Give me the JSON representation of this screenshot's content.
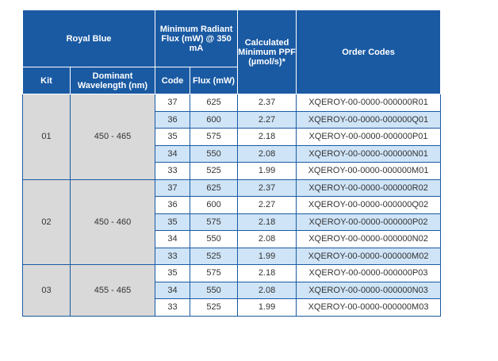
{
  "header": {
    "group_title": "Royal Blue",
    "min_flux_title": "Minimum Radiant Flux (mW) @ 350 mA",
    "ppf_title": "Calculated Minimum PPF (µmol/s)*",
    "order_codes_title": "Order Codes",
    "kit": "Kit",
    "dominant_wavelength": "Dominant Wavelength (nm)",
    "code": "Code",
    "flux": "Flux (mW)"
  },
  "kits": [
    {
      "kit": "01",
      "wavelength": "450 - 465",
      "rows": [
        {
          "code": "37",
          "flux": "625",
          "ppf": "2.37",
          "order": "XQEROY-00-0000-000000R01"
        },
        {
          "code": "36",
          "flux": "600",
          "ppf": "2.27",
          "order": "XQEROY-00-0000-000000Q01"
        },
        {
          "code": "35",
          "flux": "575",
          "ppf": "2.18",
          "order": "XQEROY-00-0000-000000P01"
        },
        {
          "code": "34",
          "flux": "550",
          "ppf": "2.08",
          "order": "XQEROY-00-0000-000000N01"
        },
        {
          "code": "33",
          "flux": "525",
          "ppf": "1.99",
          "order": "XQEROY-00-0000-000000M01"
        }
      ]
    },
    {
      "kit": "02",
      "wavelength": "450 - 460",
      "rows": [
        {
          "code": "37",
          "flux": "625",
          "ppf": "2.37",
          "order": "XQEROY-00-0000-000000R02"
        },
        {
          "code": "36",
          "flux": "600",
          "ppf": "2.27",
          "order": "XQEROY-00-0000-000000Q02"
        },
        {
          "code": "35",
          "flux": "575",
          "ppf": "2.18",
          "order": "XQEROY-00-0000-000000P02"
        },
        {
          "code": "34",
          "flux": "550",
          "ppf": "2.08",
          "order": "XQEROY-00-0000-000000N02"
        },
        {
          "code": "33",
          "flux": "525",
          "ppf": "1.99",
          "order": "XQEROY-00-0000-000000M02"
        }
      ]
    },
    {
      "kit": "03",
      "wavelength": "455 - 465",
      "rows": [
        {
          "code": "35",
          "flux": "575",
          "ppf": "2.18",
          "order": "XQEROY-00-0000-000000P03"
        },
        {
          "code": "34",
          "flux": "550",
          "ppf": "2.08",
          "order": "XQEROY-00-0000-000000N03"
        },
        {
          "code": "33",
          "flux": "525",
          "ppf": "1.99",
          "order": "XQEROY-00-0000-000000M03"
        }
      ]
    }
  ],
  "colors": {
    "header_bg": "#1a5aa3",
    "stripe_bg": "#cfe4f7",
    "kit_bg": "#d9d9d9"
  }
}
